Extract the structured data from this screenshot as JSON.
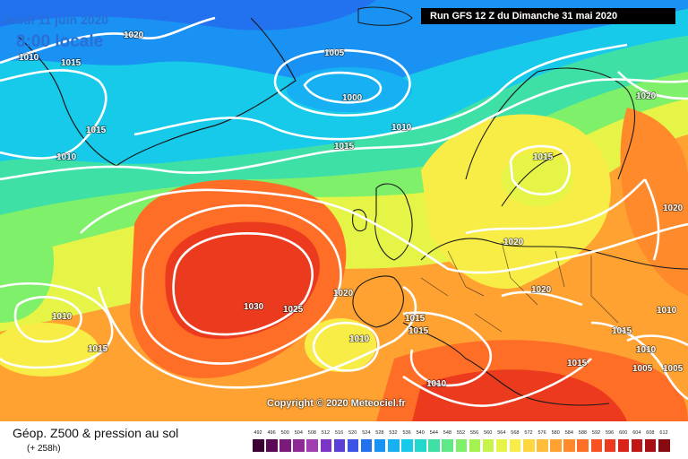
{
  "header": {
    "date": "Jeudi 11 juin 2020",
    "time": "8:00 locale",
    "run": "Run GFS 12 Z du Dimanche 31 mai 2020"
  },
  "copyright": "Copyright © 2020 Meteociel.fr",
  "footer": {
    "title": "Géop. Z500 & pression au sol",
    "subtitle": "(+ 258h)"
  },
  "isobar_labels": [
    "1020",
    "1010",
    "1015",
    "1005",
    "1000",
    "1010",
    "1015",
    "1010",
    "1015",
    "1020",
    "1015",
    "1020",
    "1030",
    "1025",
    "1020",
    "1010",
    "1015",
    "1015",
    "1010",
    "1020",
    "1020",
    "1015",
    "1010",
    "1010",
    "1015",
    "1005",
    "1005",
    "1010",
    "1015"
  ],
  "legend": {
    "values": [
      "492",
      "496",
      "500",
      "504",
      "508",
      "512",
      "516",
      "520",
      "524",
      "528",
      "532",
      "536",
      "540",
      "544",
      "548",
      "552",
      "556",
      "560",
      "564",
      "568",
      "572",
      "576",
      "580",
      "584",
      "588",
      "592",
      "596",
      "600",
      "604",
      "608",
      "612"
    ],
    "colors": [
      "#3a0033",
      "#5a0a55",
      "#7a1a7a",
      "#8e2a96",
      "#a03fb0",
      "#7c35c4",
      "#5a40d6",
      "#3a55e6",
      "#2272f0",
      "#1a92f4",
      "#17b0f2",
      "#17caea",
      "#22d8cc",
      "#3ee0a6",
      "#5ee886",
      "#7ef06a",
      "#a4f250",
      "#c6f44a",
      "#e6f448",
      "#f8ec46",
      "#ffd640",
      "#ffbd3a",
      "#ffa232",
      "#ff8a2c",
      "#ff6e26",
      "#f85222",
      "#ec3a1e",
      "#d8241a",
      "#c01616",
      "#a40e14",
      "#860a10"
    ]
  },
  "colors": {
    "banner_bg": "#000000",
    "date_text": "#2a6fd6",
    "isobar": "#ffffff"
  }
}
